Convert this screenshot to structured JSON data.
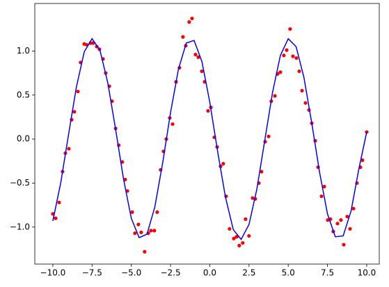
{
  "chart_data": {
    "type": "scatter",
    "xlim": [
      -11.15,
      10.8
    ],
    "ylim": [
      -1.42,
      1.54
    ],
    "xticks": [
      {
        "value": -10,
        "label": "−10.0"
      },
      {
        "value": -7.5,
        "label": "−7.5"
      },
      {
        "value": -5,
        "label": "−5.0"
      },
      {
        "value": -2.5,
        "label": "−2.5"
      },
      {
        "value": 0,
        "label": "0.0"
      },
      {
        "value": 2.5,
        "label": "2.5"
      },
      {
        "value": 5,
        "label": "5.0"
      },
      {
        "value": 7.5,
        "label": "7.5"
      },
      {
        "value": 10,
        "label": "10.0"
      }
    ],
    "yticks": [
      {
        "value": -1,
        "label": "−1.0"
      },
      {
        "value": -0.5,
        "label": "−0.5"
      },
      {
        "value": 0,
        "label": "0.0"
      },
      {
        "value": 0.5,
        "label": "0.5"
      },
      {
        "value": 1,
        "label": "1.0"
      }
    ],
    "series": [
      {
        "type": "scatter",
        "color": "#ff0000",
        "x": [
          -10,
          -9.82,
          -9.6,
          -9.38,
          -9.2,
          -8.98,
          -8.8,
          -8.63,
          -8.4,
          -8.23,
          -8.0,
          -7.83,
          -7.6,
          -7.43,
          -7.2,
          -7.03,
          -6.8,
          -6.63,
          -6.4,
          -6.23,
          -6.0,
          -5.8,
          -5.57,
          -5.39,
          -5.25,
          -4.94,
          -4.77,
          -4.55,
          -4.37,
          -4.15,
          -3.92,
          -3.75,
          -3.53,
          -3.35,
          -3.13,
          -2.95,
          -2.77,
          -2.55,
          -2.37,
          -2.15,
          -1.93,
          -1.71,
          -1.53,
          -1.31,
          -1.13,
          -0.91,
          -0.73,
          -0.51,
          -0.33,
          -0.11,
          0.07,
          0.29,
          0.47,
          0.69,
          0.86,
          1.04,
          1.26,
          1.53,
          1.71,
          1.88,
          2.1,
          2.28,
          2.5,
          2.73,
          2.9,
          3.13,
          3.3,
          3.53,
          3.75,
          3.92,
          4.15,
          4.32,
          4.5,
          4.72,
          4.9,
          5.12,
          5.3,
          5.52,
          5.7,
          5.88,
          6.1,
          6.32,
          6.5,
          6.72,
          6.9,
          7.12,
          7.3,
          7.52,
          7.69,
          7.87,
          8.14,
          8.36,
          8.54,
          8.76,
          8.94,
          9.16,
          9.38,
          9.6,
          9.73,
          10
        ],
        "values": [
          -0.85,
          -0.9,
          -0.72,
          -0.37,
          -0.16,
          -0.11,
          0.22,
          0.31,
          0.54,
          0.87,
          1.08,
          1.07,
          1.09,
          1.09,
          1.05,
          1.02,
          0.91,
          0.75,
          0.6,
          0.43,
          0.12,
          -0.07,
          -0.26,
          -0.46,
          -0.59,
          -0.83,
          -1.07,
          -0.97,
          -1.06,
          -1.28,
          -1.07,
          -1.04,
          -1.04,
          -0.83,
          -0.35,
          -0.14,
          0.0,
          0.24,
          0.17,
          0.65,
          0.81,
          1.16,
          1.06,
          1.33,
          1.37,
          0.96,
          0.93,
          0.77,
          0.65,
          0.32,
          0.36,
          0.02,
          -0.09,
          -0.31,
          -0.28,
          -0.65,
          -1.02,
          -1.13,
          -1.11,
          -1.21,
          -1.18,
          -0.91,
          -1.1,
          -0.67,
          -0.68,
          -0.5,
          -0.37,
          -0.03,
          0.03,
          0.43,
          0.49,
          0.74,
          0.76,
          0.95,
          1.01,
          1.25,
          0.94,
          0.92,
          0.77,
          0.55,
          0.41,
          0.33,
          0.18,
          -0.02,
          -0.32,
          -0.65,
          -0.54,
          -0.92,
          -0.91,
          -1.05,
          -0.96,
          -0.92,
          -1.2,
          -0.88,
          -1.02,
          -0.79,
          -0.5,
          -0.32,
          -0.24,
          0.08
        ]
      },
      {
        "type": "line",
        "color": "#0000ff",
        "x": [
          -10,
          -9.5,
          -9,
          -8.5,
          -8,
          -7.5,
          -7,
          -6.5,
          -6,
          -5.5,
          -5,
          -4.5,
          -4,
          -3.5,
          -3,
          -2.5,
          -2,
          -1.5,
          -1,
          -0.5,
          0,
          0.5,
          1,
          1.5,
          2,
          2.5,
          3,
          3.5,
          4,
          4.5,
          5,
          5.5,
          6,
          6.5,
          7,
          7.5,
          8,
          8.5,
          9,
          9.5,
          10
        ],
        "values": [
          -0.93,
          -0.5,
          0.05,
          0.59,
          0.99,
          1.14,
          1.01,
          0.64,
          0.11,
          -0.45,
          -0.9,
          -1.12,
          -1.08,
          -0.77,
          -0.27,
          0.3,
          0.79,
          1.09,
          1.12,
          0.88,
          0.42,
          -0.14,
          -0.66,
          -1.03,
          -1.14,
          -0.97,
          -0.57,
          -0.02,
          0.53,
          0.95,
          1.14,
          1.05,
          0.7,
          0.18,
          -0.38,
          -0.85,
          -1.11,
          -1.1,
          -0.82,
          -0.34,
          0.08
        ]
      }
    ]
  }
}
